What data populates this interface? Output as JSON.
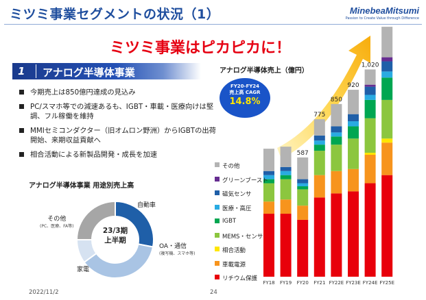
{
  "header": {
    "title": "ミツミ事業セグメントの状況（1）",
    "logo": "MinebeaMitsumi",
    "logo_tagline": "Passion to Create Value through Difference"
  },
  "headline": "ミツミ事業はピカピカに！",
  "section": {
    "number": "1",
    "title": "アナログ半導体事業"
  },
  "bullets": [
    "今期売上は850億円達成の見込み",
    "PC/スマホ等での減速あるも、IGBT・車載・医療向けは堅調、フル稼働を維持",
    "MMIセミコンダクター（旧オムロン野洲）からIGBTの出荷開始、来期収益貢献へ",
    "相合活動による新製品開発・成長を加速"
  ],
  "pie": {
    "title": "アナログ半導体事業 用途別売上高",
    "center_line1": "23/3期",
    "center_line2": "上半期",
    "segments": [
      {
        "name": "自動車",
        "share": 0.28,
        "color": "#1f5fa8"
      },
      {
        "name": "OA・通信",
        "sub": "(複写機、スマホ等)",
        "share": 0.37,
        "color": "#a9c4e4"
      },
      {
        "name": "家電",
        "share": 0.1,
        "color": "#d6e2f1"
      },
      {
        "name": "その他",
        "sub": "(PC、医療、FA等)",
        "share": 0.25,
        "color": "#a6a6a6"
      }
    ]
  },
  "chart": {
    "title": "アナログ半導体売上（億円）",
    "cagr_line1": "FY20-FY24",
    "cagr_line2": "売上高 CAGR",
    "cagr_value": "14.8%"
  },
  "chart_data": {
    "type": "bar",
    "stacked": true,
    "title": "アナログ半導体売上（億円）",
    "categories": [
      "FY18",
      "FY19",
      "FY20",
      "FY21",
      "FY22E",
      "FY23E",
      "FY24E",
      "FY25E"
    ],
    "totals_labels": [
      "",
      "",
      "587",
      "775",
      "850",
      "920",
      "1,020",
      ""
    ],
    "ylim": [
      0,
      1200
    ],
    "series": [
      {
        "name": "リチウム保護",
        "color": "#e8000b",
        "values": [
          310,
          310,
          280,
          390,
          410,
          420,
          460,
          500
        ]
      },
      {
        "name": "車載電源",
        "color": "#f7941d",
        "values": [
          60,
          70,
          70,
          110,
          110,
          110,
          140,
          160
        ]
      },
      {
        "name": "相合活動",
        "color": "#ffe600",
        "values": [
          0,
          0,
          0,
          0,
          0,
          0,
          10,
          20
        ]
      },
      {
        "name": "MEMS・センサ",
        "color": "#8cc63f",
        "values": [
          90,
          100,
          80,
          120,
          130,
          150,
          170,
          190
        ]
      },
      {
        "name": "IGBT",
        "color": "#00a651",
        "values": [
          20,
          20,
          15,
          30,
          40,
          60,
          90,
          110
        ]
      },
      {
        "name": "医療・高圧",
        "color": "#29abe2",
        "values": [
          20,
          20,
          15,
          20,
          20,
          25,
          25,
          30
        ]
      },
      {
        "name": "磁気センサ",
        "color": "#1f5fa8",
        "values": [
          20,
          20,
          20,
          25,
          30,
          35,
          40,
          50
        ]
      },
      {
        "name": "グリーンブースト",
        "color": "#662d91",
        "values": [
          0,
          0,
          0,
          0,
          0,
          0,
          10,
          20
        ]
      },
      {
        "name": "その他",
        "color": "#b3b3b3",
        "values": [
          110,
          100,
          107,
          80,
          110,
          120,
          75,
          150
        ]
      }
    ]
  },
  "footer": {
    "date": "2022/11/2",
    "page": "24"
  }
}
